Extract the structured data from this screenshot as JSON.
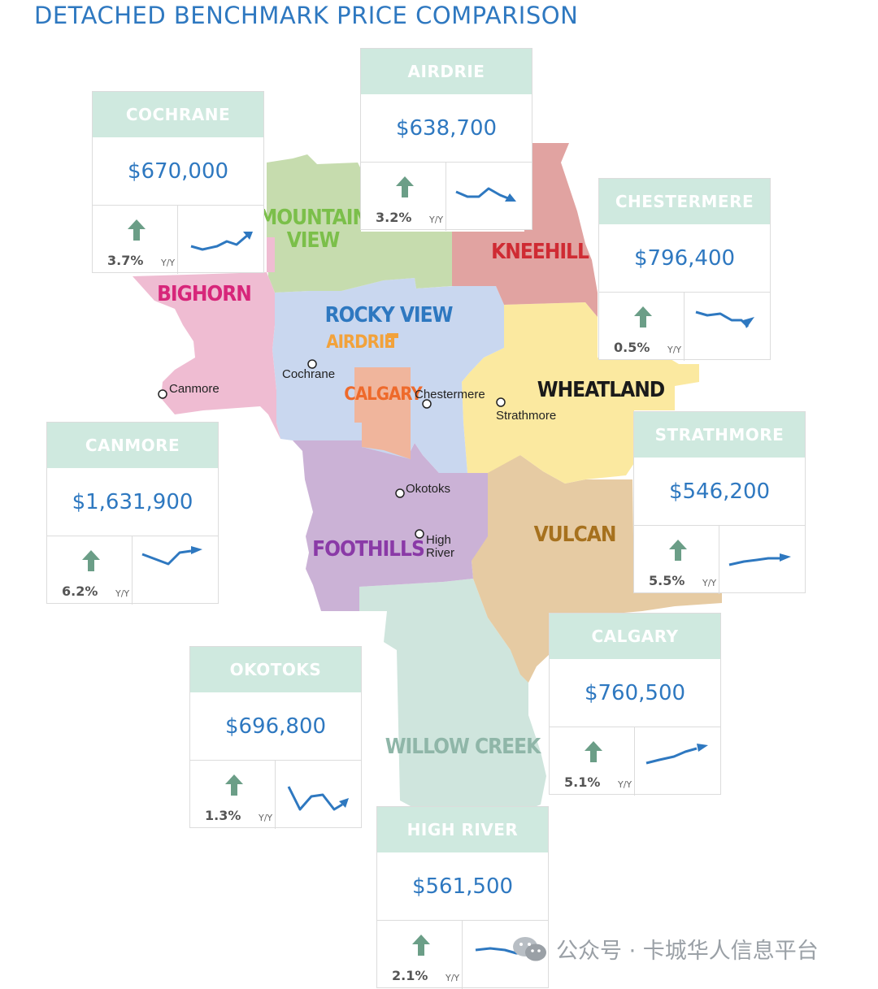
{
  "title": "DETACHED BENCHMARK PRICE COMPARISON",
  "colors": {
    "title": "#2e78c0",
    "card_header": "#cfe9df",
    "price": "#2e78c0",
    "arrow": "#6b9e87",
    "trend_line": "#2e78c0"
  },
  "regions": [
    {
      "name": "MOUNTAIN VIEW",
      "color": "#c6dcae",
      "label_color": "#7bbf4a"
    },
    {
      "name": "KNEEHILL",
      "color": "#e1a3a1",
      "label_color": "#cf2b33"
    },
    {
      "name": "BIGHORN",
      "color": "#efbcd2",
      "label_color": "#d7267a"
    },
    {
      "name": "ROCKY VIEW",
      "color": "#c9d7ef",
      "label_color": "#2e78c0"
    },
    {
      "name": "AIRDRIE",
      "color": "#c9d7ef",
      "label_color": "#f2a23b"
    },
    {
      "name": "CALGARY",
      "color": "#f0b59c",
      "label_color": "#ee6a2c"
    },
    {
      "name": "WHEATLAND",
      "color": "#fbe9a0",
      "label_color": "#1a1a1a"
    },
    {
      "name": "FOOTHILLS",
      "color": "#cbb2d6",
      "label_color": "#8a3aa7"
    },
    {
      "name": "VULCAN",
      "color": "#e6cba3",
      "label_color": "#a6711e"
    },
    {
      "name": "WILLOW CREEK",
      "color": "#cfe5dd",
      "label_color": "#8fb6a8"
    }
  ],
  "towns": [
    "Cochrane",
    "Canmore",
    "Chestermere",
    "Strathmore",
    "Okotoks",
    "High",
    "River"
  ],
  "cards": [
    {
      "name": "COCHRANE",
      "price": "$670,000",
      "change": "3.7%",
      "yy": "Y/Y",
      "trend": "up"
    },
    {
      "name": "AIRDRIE",
      "price": "$638,700",
      "change": "3.2%",
      "yy": "Y/Y",
      "trend": "down"
    },
    {
      "name": "CHESTERMERE",
      "price": "$796,400",
      "change": "0.5%",
      "yy": "Y/Y",
      "trend": "down"
    },
    {
      "name": "CANMORE",
      "price": "$1,631,900",
      "change": "6.2%",
      "yy": "Y/Y",
      "trend": "up"
    },
    {
      "name": "STRATHMORE",
      "price": "$546,200",
      "change": "5.5%",
      "yy": "Y/Y",
      "trend": "up"
    },
    {
      "name": "OKOTOKS",
      "price": "$696,800",
      "change": "1.3%",
      "yy": "Y/Y",
      "trend": "down"
    },
    {
      "name": "CALGARY",
      "price": "$760,500",
      "change": "5.1%",
      "yy": "Y/Y",
      "trend": "up"
    },
    {
      "name": "HIGH RIVER",
      "price": "$561,500",
      "change": "2.1%",
      "yy": "Y/Y",
      "trend": "down"
    }
  ],
  "watermark": "公众号 · 卡城华人信息平台"
}
